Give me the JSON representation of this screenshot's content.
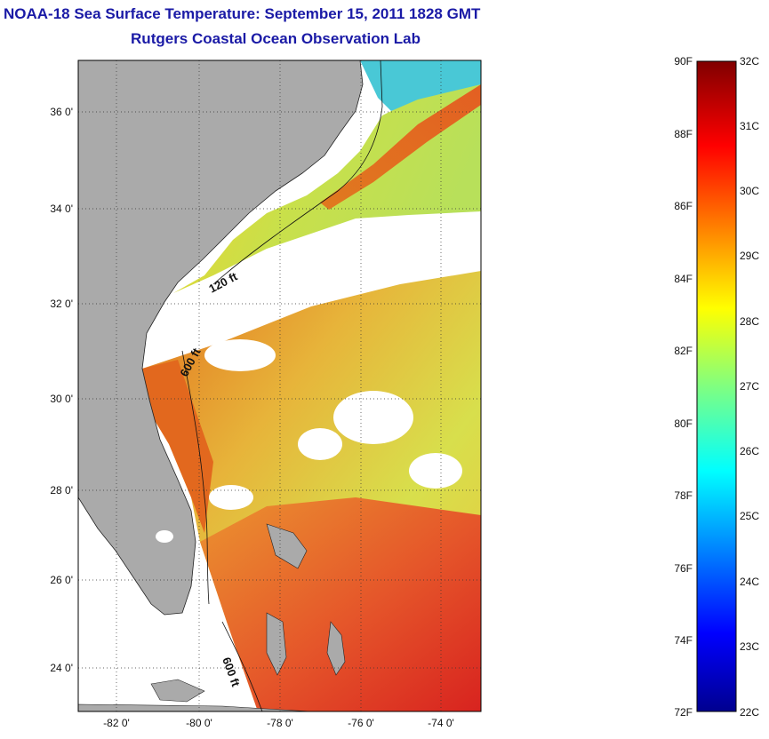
{
  "title": {
    "line1": "NOAA-18 Sea Surface Temperature:  September 15, 2011 1828 GMT",
    "line2": "Rutgers Coastal Ocean Observation Lab"
  },
  "map": {
    "lat_ticks": [
      "36 0'",
      "34 0'",
      "32 0'",
      "30 0'",
      "28 0'",
      "26 0'",
      "24 0'"
    ],
    "lon_ticks": [
      "-82 0'",
      "-80 0'",
      "-78 0'",
      "-76 0'",
      "-74 0'"
    ],
    "contour_labels": [
      "120 ft",
      "600 ft",
      "600 ft"
    ],
    "colors": {
      "land": "#aaaaaa",
      "no_data": "#ffffff"
    }
  },
  "colorbar": {
    "fahrenheit_labels": [
      "90F",
      "88F",
      "86F",
      "84F",
      "82F",
      "80F",
      "78F",
      "76F",
      "74F",
      "72F"
    ],
    "celsius_labels": [
      "32C",
      "31C",
      "30C",
      "29C",
      "28C",
      "27C",
      "26C",
      "25C",
      "24C",
      "23C",
      "22C"
    ],
    "range_f": [
      72,
      90
    ],
    "range_c": [
      22,
      32
    ]
  }
}
